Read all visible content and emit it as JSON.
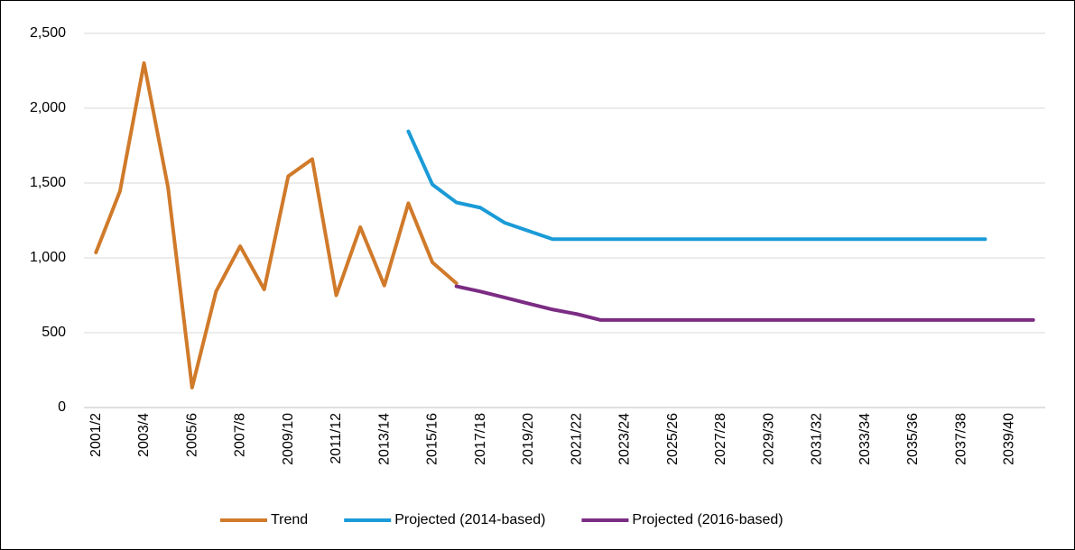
{
  "chart_data": {
    "type": "line",
    "categories": [
      "2001/2",
      null,
      "2003/4",
      null,
      "2005/6",
      null,
      "2007/8",
      null,
      "2009/10",
      null,
      "2011/12",
      null,
      "2013/14",
      null,
      "2015/16",
      null,
      "2017/18",
      null,
      "2019/20",
      null,
      "2021/22",
      null,
      "2023/24",
      null,
      "2025/26",
      null,
      "2027/28",
      null,
      "2029/30",
      null,
      "2031/32",
      null,
      "2033/34",
      null,
      "2035/36",
      null,
      "2037/38",
      null,
      "2039/40",
      null
    ],
    "series": [
      {
        "name": "Trend",
        "color": "#d07a2a",
        "values": [
          1036,
          1446,
          2301,
          1470,
          133,
          777,
          1078,
          789,
          1545,
          1660,
          750,
          1205,
          815,
          1365,
          970,
          830,
          null,
          null,
          null,
          null,
          null,
          null,
          null,
          null,
          null,
          null,
          null,
          null,
          null,
          null,
          null,
          null,
          null,
          null,
          null,
          null,
          null,
          null,
          null,
          null
        ]
      },
      {
        "name": "Projected (2014-based)",
        "color": "#1a9bd7",
        "values": [
          null,
          null,
          null,
          null,
          null,
          null,
          null,
          null,
          null,
          null,
          null,
          null,
          null,
          1845,
          1490,
          1370,
          1335,
          1235,
          1180,
          1125,
          1125,
          1125,
          1125,
          1125,
          1125,
          1125,
          1125,
          1125,
          1125,
          1125,
          1125,
          1125,
          1125,
          1125,
          1125,
          1125,
          1125,
          1125,
          null,
          null
        ]
      },
      {
        "name": "Projected (2016-based)",
        "color": "#7b2c83",
        "values": [
          null,
          null,
          null,
          null,
          null,
          null,
          null,
          null,
          null,
          null,
          null,
          null,
          null,
          null,
          null,
          810,
          775,
          735,
          695,
          655,
          625,
          585,
          585,
          585,
          585,
          585,
          585,
          585,
          585,
          585,
          585,
          585,
          585,
          585,
          585,
          585,
          585,
          585,
          585,
          585
        ]
      }
    ],
    "ylim": [
      0,
      2500
    ],
    "yticks": [
      0,
      500,
      {
        "value": 1000,
        "label": "1,000"
      },
      {
        "value": 1500,
        "label": "1,500"
      },
      {
        "value": 2000,
        "label": "2,000"
      },
      {
        "value": 2500,
        "label": "2,500"
      }
    ],
    "grid": true,
    "legend": "bottom"
  }
}
